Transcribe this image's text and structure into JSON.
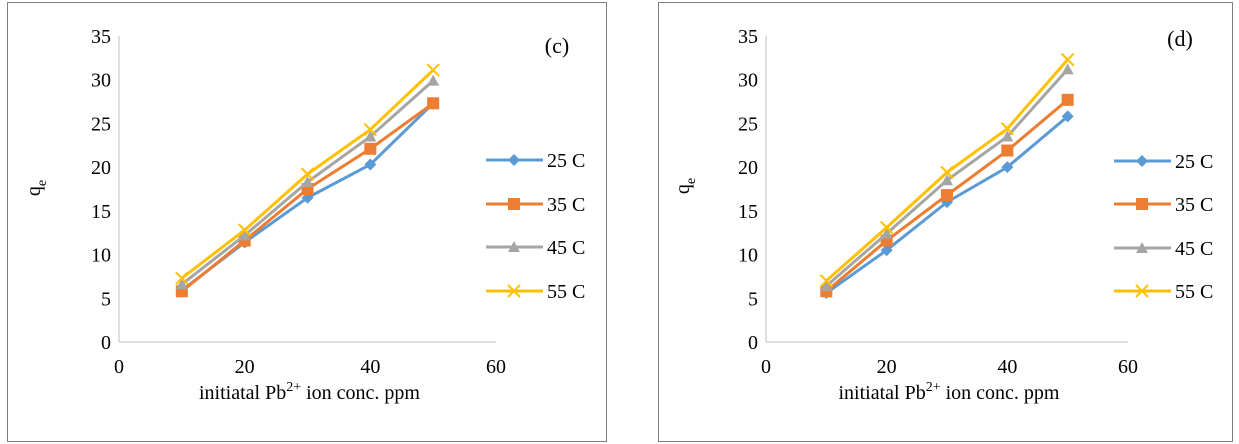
{
  "charts": [
    {
      "id": "panel-c",
      "panel_label": "(c)",
      "ylabel_main": "q",
      "ylabel_sub": "e",
      "xlabel_pre": "initiatal Pb",
      "xlabel_sup": "2+",
      "xlabel_post": " ion conc. ppm",
      "x_ticks": [
        "0",
        "20",
        "40",
        "60"
      ],
      "y_ticks": [
        "0",
        "5",
        "10",
        "15",
        "20",
        "25",
        "30",
        "35"
      ]
    },
    {
      "id": "panel-d",
      "panel_label": "(d)",
      "ylabel_main": "q",
      "ylabel_sub": "e",
      "xlabel_pre": "initiatal Pb",
      "xlabel_sup": "2+",
      "xlabel_post": " ion conc. ppm",
      "x_ticks": [
        "0",
        "20",
        "40",
        "60"
      ],
      "y_ticks": [
        "0",
        "5",
        "10",
        "15",
        "20",
        "25",
        "30",
        "35"
      ]
    }
  ],
  "series_style": [
    {
      "name": "25 C",
      "color": "#5B9BD5",
      "marker": "diamond"
    },
    {
      "name": "35 C",
      "color": "#ED7D31",
      "marker": "square"
    },
    {
      "name": "45 C",
      "color": "#A5A5A5",
      "marker": "triangle"
    },
    {
      "name": "55 C",
      "color": "#FFC000",
      "marker": "x"
    }
  ],
  "chart_data": [
    {
      "type": "line",
      "title": "(c)",
      "xlabel": "initiatal Pb2+ ion conc. ppm",
      "ylabel": "qe",
      "xlim": [
        0,
        60
      ],
      "ylim": [
        0,
        35
      ],
      "x": [
        10,
        20,
        30,
        40,
        50
      ],
      "series": [
        {
          "name": "25 C",
          "values": [
            5.9,
            11.4,
            16.5,
            20.3,
            27.3
          ]
        },
        {
          "name": "35 C",
          "values": [
            5.8,
            11.6,
            17.5,
            22.1,
            27.3
          ]
        },
        {
          "name": "45 C",
          "values": [
            6.6,
            12.2,
            18.3,
            23.5,
            29.9
          ]
        },
        {
          "name": "55 C",
          "values": [
            7.3,
            12.8,
            19.2,
            24.3,
            31.1
          ]
        }
      ],
      "legend": "right",
      "grid": false
    },
    {
      "type": "line",
      "title": "(d)",
      "xlabel": "initiatal Pb2+ ion conc. ppm",
      "ylabel": "qe",
      "xlim": [
        0,
        60
      ],
      "ylim": [
        0,
        35
      ],
      "x": [
        10,
        20,
        30,
        40,
        50
      ],
      "series": [
        {
          "name": "25 C",
          "values": [
            5.6,
            10.5,
            16.0,
            20.0,
            25.8
          ]
        },
        {
          "name": "35 C",
          "values": [
            5.8,
            11.6,
            16.8,
            21.9,
            27.7
          ]
        },
        {
          "name": "45 C",
          "values": [
            6.4,
            12.4,
            18.5,
            23.5,
            31.2
          ]
        },
        {
          "name": "55 C",
          "values": [
            7.0,
            13.1,
            19.4,
            24.4,
            32.3
          ]
        }
      ],
      "legend": "right",
      "grid": false
    }
  ]
}
